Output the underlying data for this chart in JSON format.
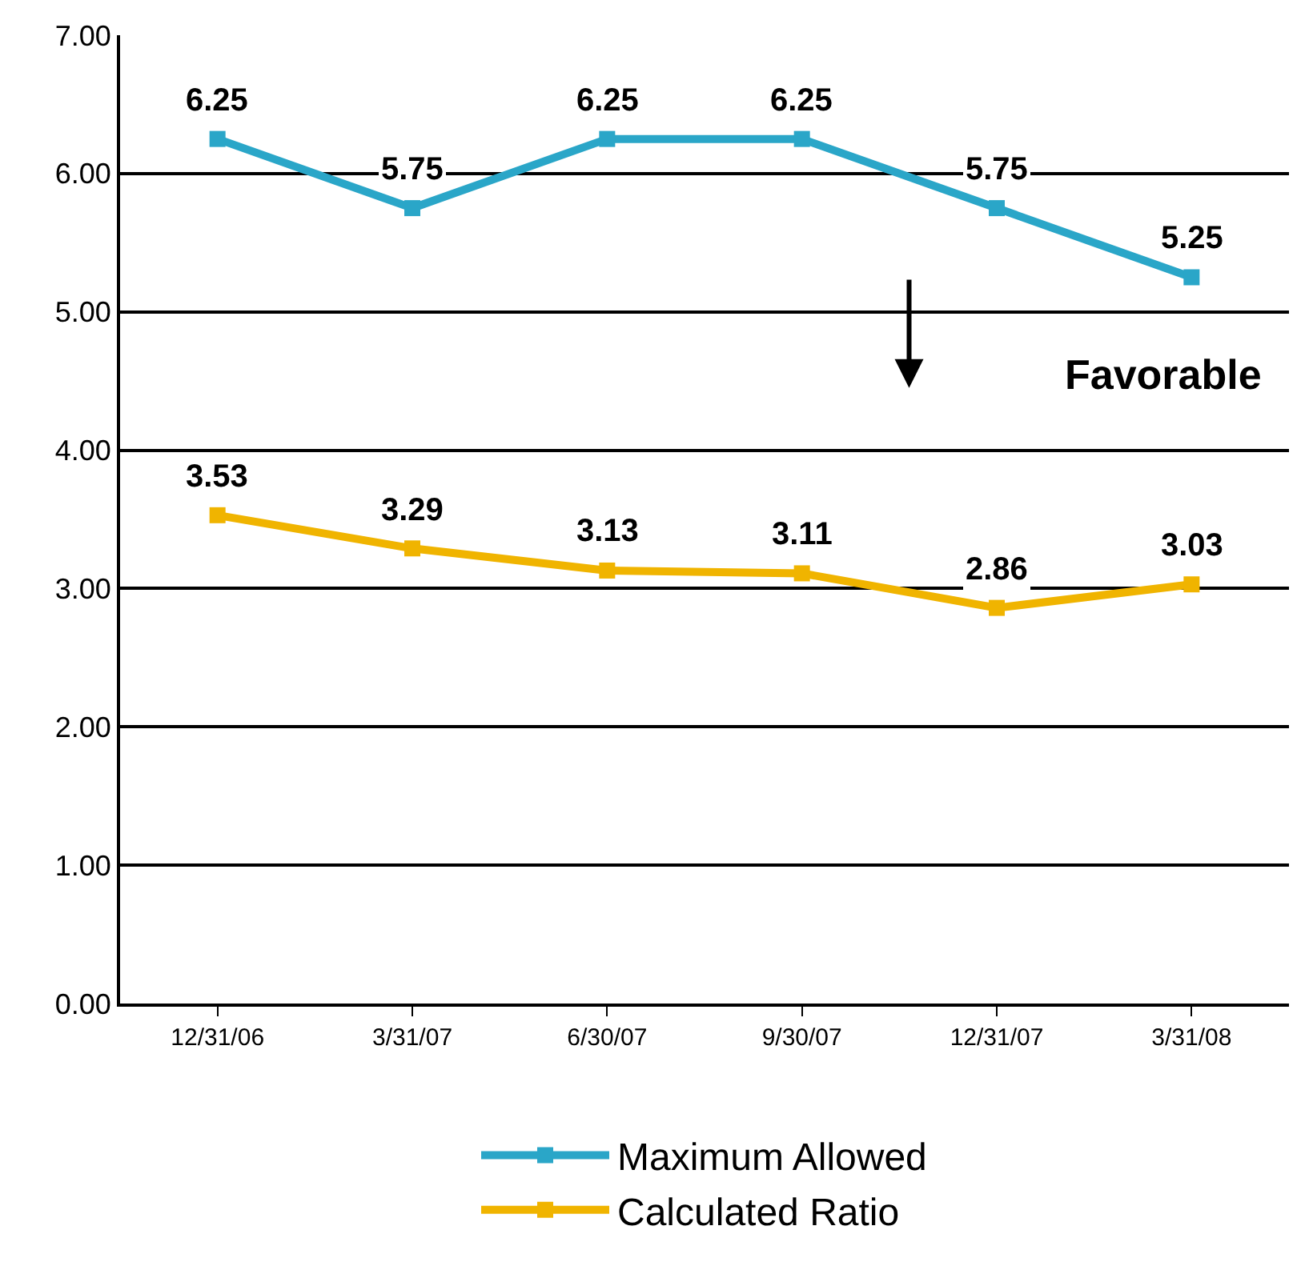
{
  "chart_data": {
    "type": "line",
    "categories": [
      "12/31/06",
      "3/31/07",
      "6/30/07",
      "9/30/07",
      "12/31/07",
      "3/31/08"
    ],
    "series": [
      {
        "name": "Maximum Allowed",
        "color": "#2aa6c8",
        "values": [
          6.25,
          5.75,
          6.25,
          6.25,
          5.75,
          5.25
        ]
      },
      {
        "name": "Calculated Ratio",
        "color": "#f0b400",
        "values": [
          3.53,
          3.29,
          3.13,
          3.11,
          2.86,
          3.03
        ]
      }
    ],
    "ylim": [
      0,
      7
    ],
    "yticks": [
      {
        "value": 0,
        "label": "0.00"
      },
      {
        "value": 1,
        "label": "1.00"
      },
      {
        "value": 2,
        "label": "2.00"
      },
      {
        "value": 3,
        "label": "3.00"
      },
      {
        "value": 4,
        "label": "4.00"
      },
      {
        "value": 5,
        "label": "5.00"
      },
      {
        "value": 6,
        "label": "6.00"
      },
      {
        "value": 7,
        "label": "7.00"
      }
    ],
    "annotations": [
      "Favorable"
    ],
    "data_labels": true,
    "grid": "y",
    "legend": "bottom",
    "marker": "square",
    "line_style": "solid"
  }
}
